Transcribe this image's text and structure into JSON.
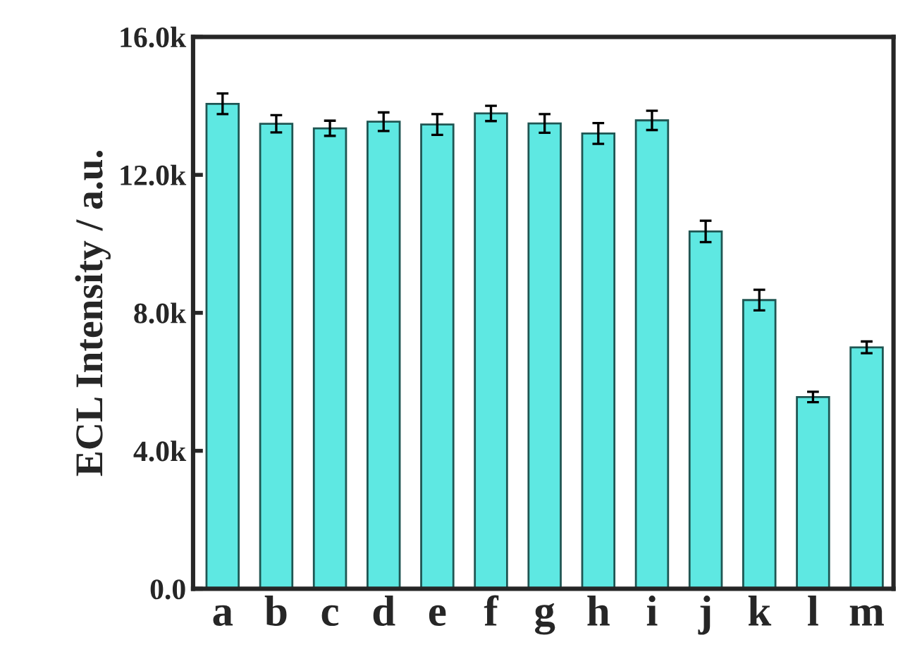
{
  "chart_data": {
    "type": "bar",
    "ylabel": "ECL Intensity / a.u.",
    "categories": [
      "a",
      "b",
      "c",
      "d",
      "e",
      "f",
      "g",
      "h",
      "i",
      "j",
      "k",
      "l",
      "m"
    ],
    "values": [
      14.06,
      13.48,
      13.35,
      13.54,
      13.46,
      13.78,
      13.49,
      13.2,
      13.58,
      10.36,
      8.37,
      5.56,
      7.0
    ],
    "errors": [
      0.3,
      0.25,
      0.22,
      0.27,
      0.3,
      0.22,
      0.27,
      0.3,
      0.28,
      0.31,
      0.3,
      0.15,
      0.17
    ],
    "color": "#5ee8e2",
    "ylim": [
      0,
      16
    ],
    "yticks": [
      {
        "value": 0,
        "label": "0.0"
      },
      {
        "value": 4,
        "label": "4.0k"
      },
      {
        "value": 8,
        "label": "8.0k"
      },
      {
        "value": 12,
        "label": "12.0k"
      },
      {
        "value": 16,
        "label": "16.0k"
      }
    ],
    "grid": false
  }
}
